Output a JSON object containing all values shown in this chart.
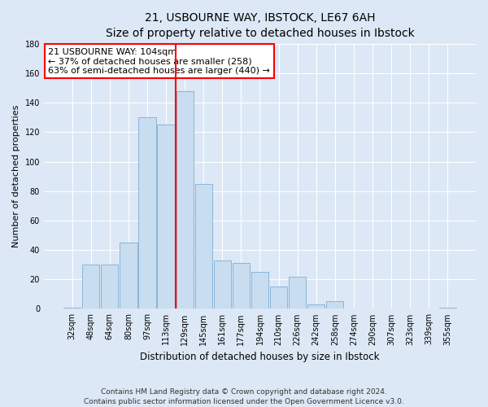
{
  "title": "21, USBOURNE WAY, IBSTOCK, LE67 6AH",
  "subtitle": "Size of property relative to detached houses in Ibstock",
  "xlabel": "Distribution of detached houses by size in Ibstock",
  "ylabel": "Number of detached properties",
  "bar_labels": [
    "32sqm",
    "48sqm",
    "64sqm",
    "80sqm",
    "97sqm",
    "113sqm",
    "129sqm",
    "145sqm",
    "161sqm",
    "177sqm",
    "194sqm",
    "210sqm",
    "226sqm",
    "242sqm",
    "258sqm",
    "274sqm",
    "290sqm",
    "307sqm",
    "323sqm",
    "339sqm",
    "355sqm"
  ],
  "bar_values": [
    1,
    30,
    30,
    45,
    130,
    125,
    148,
    85,
    33,
    31,
    25,
    15,
    22,
    3,
    5,
    0,
    0,
    0,
    0,
    0,
    1
  ],
  "bar_color": "#c9ddf0",
  "bar_edgecolor": "#8ab4d8",
  "vline_color": "red",
  "vline_x": 5.5,
  "annotation_title": "21 USBOURNE WAY: 104sqm",
  "annotation_line1": "← 37% of detached houses are smaller (258)",
  "annotation_line2": "63% of semi-detached houses are larger (440) →",
  "annotation_box_facecolor": "white",
  "annotation_box_edgecolor": "red",
  "ylim": [
    0,
    180
  ],
  "yticks": [
    0,
    20,
    40,
    60,
    80,
    100,
    120,
    140,
    160,
    180
  ],
  "footer1": "Contains HM Land Registry data © Crown copyright and database right 2024.",
  "footer2": "Contains public sector information licensed under the Open Government Licence v3.0.",
  "bg_color": "#dce8f5",
  "fig_bg_color": "#dce8f5",
  "title_fontsize": 10,
  "subtitle_fontsize": 9,
  "ylabel_fontsize": 8,
  "xlabel_fontsize": 8.5,
  "tick_fontsize": 7,
  "annot_fontsize": 8,
  "footer_fontsize": 6.5
}
